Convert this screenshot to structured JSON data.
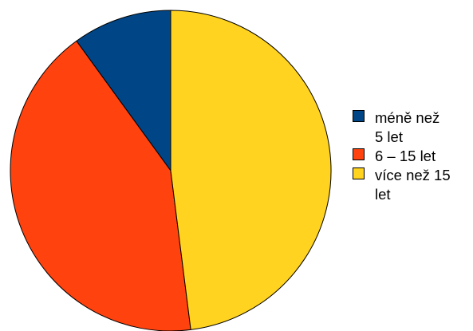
{
  "chart_data": {
    "type": "pie",
    "title": "",
    "categories": [
      "méně než 5 let",
      "6 – 15 let",
      "více než 15 let"
    ],
    "values": [
      10,
      42,
      48
    ],
    "colors": [
      "#004586",
      "#ff420e",
      "#ffd320"
    ],
    "start_angle_deg": 0,
    "direction": "counterclockwise",
    "legend_position": "right",
    "legend_labels": [
      "méně než\n5 let",
      "6 – 15 let",
      "více než 15\nlet"
    ]
  }
}
